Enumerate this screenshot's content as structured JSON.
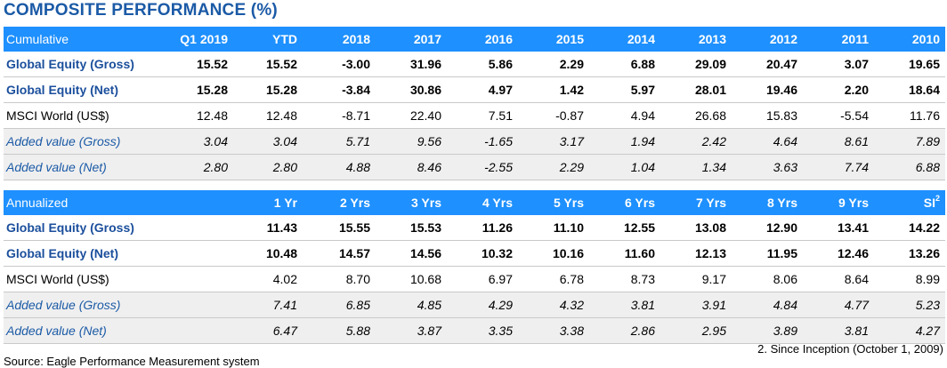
{
  "title": "COMPOSITE PERFORMANCE (%)",
  "cumulative": {
    "header": [
      "Cumulative",
      "Q1 2019",
      "YTD",
      "2018",
      "2017",
      "2016",
      "2015",
      "2014",
      "2013",
      "2012",
      "2011",
      "2010"
    ],
    "rows": [
      {
        "style": "bold",
        "cells": [
          "Global Equity (Gross)",
          "15.52",
          "15.52",
          "-3.00",
          "31.96",
          "5.86",
          "2.29",
          "6.88",
          "29.09",
          "20.47",
          "3.07",
          "19.65"
        ]
      },
      {
        "style": "bold",
        "cells": [
          "Global Equity (Net)",
          "15.28",
          "15.28",
          "-3.84",
          "30.86",
          "4.97",
          "1.42",
          "5.97",
          "28.01",
          "19.46",
          "2.20",
          "18.64"
        ]
      },
      {
        "style": "plain",
        "cells": [
          "MSCI World (US$)",
          "12.48",
          "12.48",
          "-8.71",
          "22.40",
          "7.51",
          "-0.87",
          "4.94",
          "26.68",
          "15.83",
          "-5.54",
          "11.76"
        ]
      },
      {
        "style": "ital",
        "cells": [
          "Added value (Gross)",
          "3.04",
          "3.04",
          "5.71",
          "9.56",
          "-1.65",
          "3.17",
          "1.94",
          "2.42",
          "4.64",
          "8.61",
          "7.89"
        ]
      },
      {
        "style": "ital",
        "cells": [
          "Added value (Net)",
          "2.80",
          "2.80",
          "4.88",
          "8.46",
          "-2.55",
          "2.29",
          "1.04",
          "1.34",
          "3.63",
          "7.74",
          "6.88"
        ]
      }
    ]
  },
  "annualized": {
    "header": [
      "Annualized",
      "",
      "1 Yr",
      "2 Yrs",
      "3 Yrs",
      "4 Yrs",
      "5 Yrs",
      "6 Yrs",
      "7 Yrs",
      "8 Yrs",
      "9 Yrs",
      "SI"
    ],
    "si_superscript": "2",
    "rows": [
      {
        "style": "bold",
        "cells": [
          "Global Equity (Gross)",
          "",
          "11.43",
          "15.55",
          "15.53",
          "11.26",
          "11.10",
          "12.55",
          "13.08",
          "12.90",
          "13.41",
          "14.22"
        ]
      },
      {
        "style": "bold",
        "cells": [
          "Global Equity (Net)",
          "",
          "10.48",
          "14.57",
          "14.56",
          "10.32",
          "10.16",
          "11.60",
          "12.13",
          "11.95",
          "12.46",
          "13.26"
        ]
      },
      {
        "style": "plain",
        "cells": [
          "MSCI World (US$)",
          "",
          "4.02",
          "8.70",
          "10.68",
          "6.97",
          "6.78",
          "8.73",
          "9.17",
          "8.06",
          "8.64",
          "8.99"
        ]
      },
      {
        "style": "ital",
        "cells": [
          "Added value (Gross)",
          "",
          "7.41",
          "6.85",
          "4.85",
          "4.29",
          "4.32",
          "3.81",
          "3.91",
          "4.84",
          "4.77",
          "5.23"
        ]
      },
      {
        "style": "ital",
        "cells": [
          "Added value (Net)",
          "",
          "6.47",
          "5.88",
          "3.87",
          "3.35",
          "3.38",
          "2.86",
          "2.95",
          "3.89",
          "3.81",
          "4.27"
        ]
      }
    ]
  },
  "footnote": "2. Since Inception (October 1, 2009)",
  "source": "Source: Eagle Performance Measurement system"
}
